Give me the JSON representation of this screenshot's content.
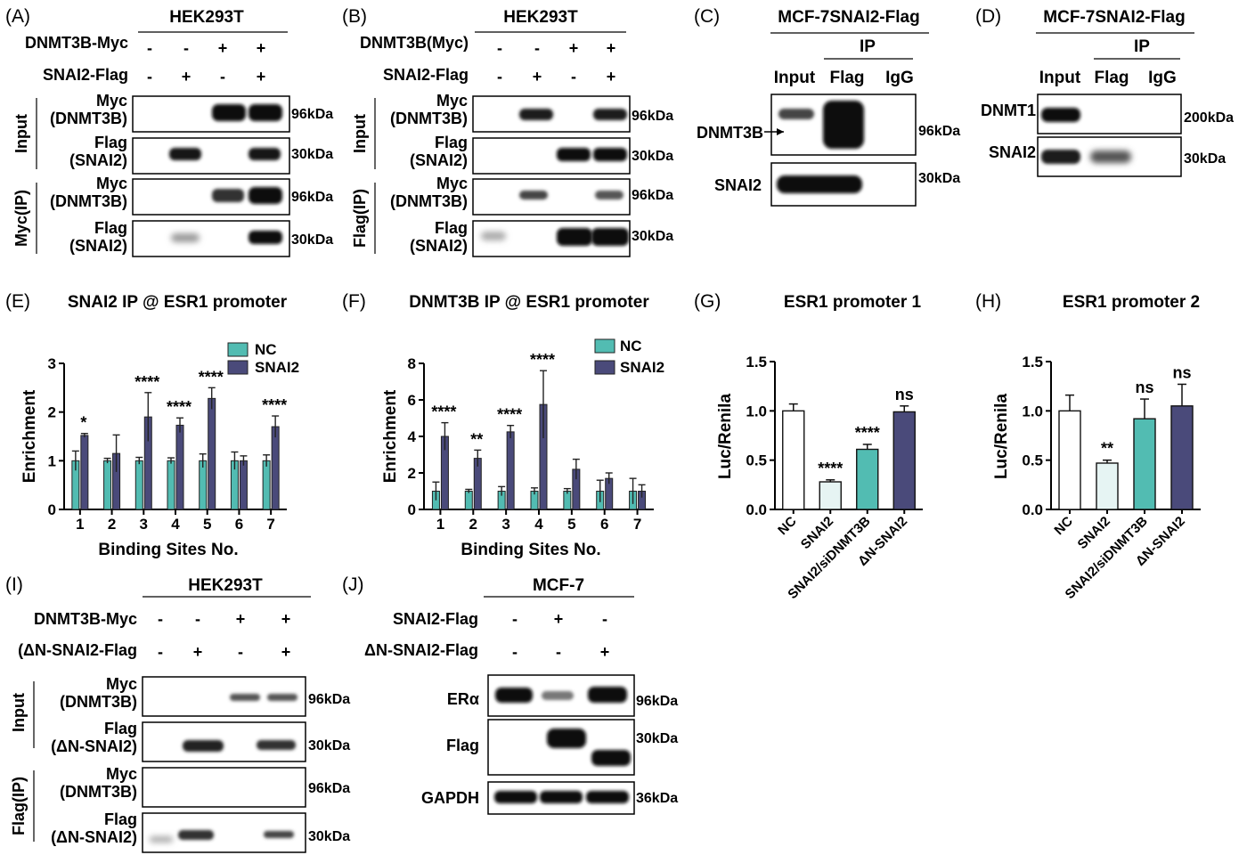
{
  "panels": {
    "A": {
      "letter": "(A)",
      "cell": "HEK293T",
      "row1": "DNMT3B-Myc",
      "row1_signs": [
        "-",
        "-",
        "+",
        "+"
      ],
      "row2": "SNAI2-Flag",
      "row2_signs": [
        "-",
        "+",
        "-",
        "+"
      ],
      "group_input": "Input",
      "group_ip": "Myc(IP)",
      "lanes": [
        "Myc",
        "(DNMT3B)",
        "Flag",
        "(SNAI2)",
        "Myc",
        "(DNMT3B)",
        "Flag",
        "(SNAI2)"
      ],
      "markers": [
        "96kDa",
        "30kDa",
        "96kDa",
        "30kDa"
      ]
    },
    "B": {
      "letter": "(B)",
      "cell": "HEK293T",
      "row1": "DNMT3B(Myc)",
      "row1_signs": [
        "-",
        "-",
        "+",
        "+"
      ],
      "row2": "SNAI2-Flag",
      "row2_signs": [
        "-",
        "+",
        "-",
        "+"
      ],
      "group_input": "Input",
      "group_ip": "Flag(IP)",
      "lanes": [
        "Myc",
        "(DNMT3B)",
        "Flag",
        "(SNAI2)",
        "Myc",
        "(DNMT3B)",
        "Flag",
        "(SNAI2)"
      ],
      "markers": [
        "96kDa",
        "30kDa",
        "96kDa",
        "30kDa"
      ]
    },
    "C": {
      "letter": "(C)",
      "cell": "MCF-7SNAI2-Flag",
      "ip": "IP",
      "cols": [
        "Input",
        "Flag",
        "IgG"
      ],
      "rows": [
        "DNMT3B",
        "SNAI2"
      ],
      "markers": [
        "96kDa",
        "30kDa"
      ]
    },
    "D": {
      "letter": "(D)",
      "cell": "MCF-7SNAI2-Flag",
      "ip": "IP",
      "cols": [
        "Input",
        "Flag",
        "IgG"
      ],
      "rows": [
        "DNMT1",
        "SNAI2"
      ],
      "markers": [
        "200kDa",
        "30kDa"
      ]
    },
    "E": {
      "letter": "(E)",
      "title": "SNAI2 IP @ ESR1 promoter"
    },
    "F": {
      "letter": "(F)",
      "title": "DNMT3B IP @ ESR1 promoter"
    },
    "G": {
      "letter": "(G)",
      "title": "ESR1 promoter 1"
    },
    "H": {
      "letter": "(H)",
      "title": "ESR1 promoter 2"
    },
    "I": {
      "letter": "(I)",
      "cell": "HEK293T",
      "row1": "DNMT3B-Myc",
      "row1_signs": [
        "-",
        "-",
        "+",
        "+"
      ],
      "row2": "(ΔN-SNAI2-Flag",
      "row2_signs": [
        "-",
        "+",
        "-",
        "+"
      ],
      "group_input": "Input",
      "group_ip": "Flag(IP)",
      "lanes": [
        "Myc",
        "(DNMT3B)",
        "Flag",
        "(ΔN-SNAI2)",
        "Myc",
        "(DNMT3B)",
        "Flag",
        "(ΔN-SNAI2)"
      ],
      "markers": [
        "96kDa",
        "30kDa",
        "96kDa",
        "30kDa"
      ]
    },
    "J": {
      "letter": "(J)",
      "cell": "MCF-7",
      "row1": "SNAI2-Flag",
      "row1_signs": [
        "-",
        "+",
        "-"
      ],
      "row2": "ΔN-SNAI2-Flag",
      "row2_signs": [
        "-",
        "-",
        "+"
      ],
      "rows": [
        "ERα",
        "Flag",
        "GAPDH"
      ],
      "markers": [
        "96kDa",
        "30kDa",
        "36kDa"
      ]
    }
  },
  "chart_data": [
    {
      "panel": "E",
      "type": "bar",
      "title": "SNAI2 IP @ ESR1 promoter",
      "xlabel": "Binding Sites No.",
      "ylabel": "Enrichment",
      "ylim": [
        0,
        3
      ],
      "yticks": [
        0,
        1,
        2,
        3
      ],
      "categories": [
        "1",
        "2",
        "3",
        "4",
        "5",
        "6",
        "7"
      ],
      "legend": "top-right",
      "series": [
        {
          "name": "NC",
          "color": "#52bcb2",
          "values": [
            1.0,
            1.0,
            1.0,
            1.0,
            1.0,
            1.0,
            1.0
          ],
          "errors": [
            0.2,
            0.05,
            0.07,
            0.06,
            0.14,
            0.18,
            0.12
          ]
        },
        {
          "name": "SNAI2",
          "color": "#4a4a7a",
          "values": [
            1.52,
            1.15,
            1.9,
            1.73,
            2.28,
            1.0,
            1.7
          ],
          "errors": [
            0.04,
            0.38,
            0.5,
            0.15,
            0.22,
            0.1,
            0.22
          ]
        }
      ],
      "annotations": [
        "*",
        "",
        "****",
        "****",
        "****",
        "",
        "****"
      ]
    },
    {
      "panel": "F",
      "type": "bar",
      "title": "DNMT3B IP @ ESR1 promoter",
      "xlabel": "Binding Sites No.",
      "ylabel": "Enrichment",
      "ylim": [
        0,
        8
      ],
      "yticks": [
        0,
        2,
        4,
        6,
        8
      ],
      "categories": [
        "1",
        "2",
        "3",
        "4",
        "5",
        "6",
        "7"
      ],
      "legend": "top-right",
      "series": [
        {
          "name": "NC",
          "color": "#52bcb2",
          "values": [
            1.0,
            1.0,
            1.0,
            1.0,
            1.0,
            1.0,
            1.0
          ],
          "errors": [
            0.5,
            0.1,
            0.25,
            0.18,
            0.14,
            0.6,
            0.7
          ]
        },
        {
          "name": "SNAI2",
          "color": "#4a4a7a",
          "values": [
            4.0,
            2.8,
            4.25,
            5.75,
            2.2,
            1.7,
            1.0
          ],
          "errors": [
            0.75,
            0.45,
            0.35,
            1.85,
            0.55,
            0.3,
            0.35
          ]
        }
      ],
      "annotations": [
        "****",
        "**",
        "****",
        "****",
        "",
        "",
        ""
      ]
    },
    {
      "panel": "G",
      "type": "bar",
      "title": "ESR1 promoter 1",
      "ylabel": "Luc/Renila",
      "ylim": [
        0,
        1.5
      ],
      "yticks": [
        "0.0",
        "0.5",
        "1.0",
        "1.5"
      ],
      "categories": [
        "NC",
        "SNAI2",
        "SNAI2/siDNMT3B",
        "ΔN-SNAI2"
      ],
      "values": [
        1.0,
        0.28,
        0.61,
        0.99
      ],
      "errors": [
        0.07,
        0.02,
        0.05,
        0.06
      ],
      "colors": [
        "#ffffff",
        "#e6f4f3",
        "#52bcb2",
        "#4a4a7a"
      ],
      "annotations": [
        "",
        "****",
        "****",
        "ns"
      ]
    },
    {
      "panel": "H",
      "type": "bar",
      "title": "ESR1 promoter 2",
      "ylabel": "Luc/Renila",
      "ylim": [
        0,
        1.5
      ],
      "yticks": [
        "0.0",
        "0.5",
        "1.0",
        "1.5"
      ],
      "categories": [
        "NC",
        "SNAI2",
        "SNAI2/siDNMT3B",
        "ΔN-SNAI2"
      ],
      "values": [
        1.0,
        0.47,
        0.92,
        1.05
      ],
      "errors": [
        0.16,
        0.03,
        0.2,
        0.22
      ],
      "colors": [
        "#ffffff",
        "#e6f4f3",
        "#52bcb2",
        "#4a4a7a"
      ],
      "annotations": [
        "",
        "**",
        "ns",
        "ns"
      ]
    }
  ]
}
